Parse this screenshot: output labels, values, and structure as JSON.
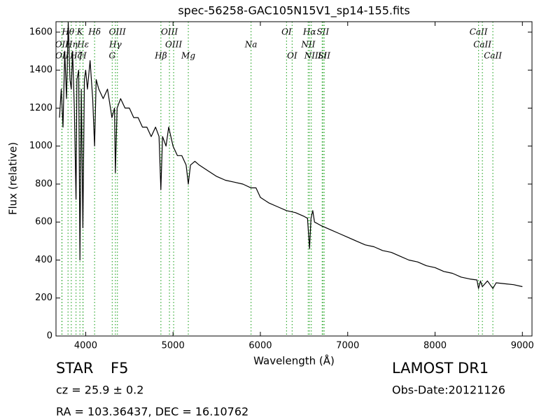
{
  "chart_data": {
    "type": "line",
    "title": "spec-56258-GAC105N15V1_sp14-155.fits",
    "xlabel": "Wavelength (Å)",
    "ylabel": "Flux (relative)",
    "color": "#000000",
    "line_color": "#33aa33",
    "xlim": [
      3660,
      9110
    ],
    "ylim": [
      0,
      1655
    ],
    "xticks": [
      4000,
      5000,
      6000,
      7000,
      8000,
      9000
    ],
    "yticks": [
      0,
      200,
      400,
      600,
      800,
      1000,
      1200,
      1400,
      1600
    ],
    "x": [
      3700,
      3720,
      3740,
      3760,
      3780,
      3800,
      3820,
      3835,
      3850,
      3870,
      3889,
      3900,
      3920,
      3934,
      3950,
      3968,
      3985,
      4000,
      4020,
      4050,
      4080,
      4102,
      4120,
      4150,
      4200,
      4250,
      4300,
      4330,
      4340,
      4360,
      4400,
      4450,
      4500,
      4550,
      4600,
      4650,
      4700,
      4750,
      4800,
      4840,
      4861,
      4880,
      4920,
      4950,
      5000,
      5050,
      5100,
      5150,
      5175,
      5200,
      5250,
      5300,
      5400,
      5500,
      5600,
      5700,
      5800,
      5893,
      5950,
      6000,
      6100,
      6200,
      6300,
      6400,
      6500,
      6540,
      6563,
      6580,
      6600,
      6620,
      6700,
      6800,
      6900,
      7000,
      7100,
      7200,
      7300,
      7400,
      7500,
      7600,
      7700,
      7800,
      7900,
      8000,
      8100,
      8200,
      8300,
      8400,
      8480,
      8498,
      8520,
      8542,
      8600,
      8662,
      8700,
      8800,
      8900,
      9000
    ],
    "values": [
      1150,
      1300,
      1100,
      1500,
      1250,
      1650,
      1350,
      1300,
      1500,
      1200,
      720,
      1350,
      1400,
      400,
      1300,
      570,
      1350,
      1400,
      1300,
      1450,
      1250,
      1000,
      1350,
      1300,
      1250,
      1300,
      1150,
      1200,
      860,
      1200,
      1250,
      1200,
      1200,
      1150,
      1150,
      1100,
      1100,
      1050,
      1100,
      1050,
      770,
      1050,
      1000,
      1100,
      1000,
      950,
      950,
      900,
      800,
      900,
      920,
      900,
      870,
      840,
      820,
      810,
      800,
      780,
      780,
      730,
      700,
      680,
      660,
      650,
      630,
      620,
      460,
      620,
      660,
      600,
      580,
      560,
      540,
      520,
      500,
      480,
      470,
      450,
      440,
      420,
      400,
      390,
      370,
      360,
      340,
      330,
      310,
      300,
      295,
      250,
      290,
      260,
      290,
      250,
      280,
      275,
      270,
      260
    ],
    "spectral_lines": [
      [
        {
          "label": "Hθ",
          "wavelength": 3798
        },
        {
          "label": "K",
          "wavelength": 3934
        },
        {
          "label": "Hδ",
          "wavelength": 4102
        },
        {
          "label": "OIII",
          "wavelength": 4363
        },
        {
          "label": "OIII",
          "wavelength": 4959
        },
        {
          "label": "OI",
          "wavelength": 6300
        },
        {
          "label": "Hα",
          "wavelength": 6563
        },
        {
          "label": "SII",
          "wavelength": 6716
        },
        {
          "label": "CaII",
          "wavelength": 8498
        }
      ],
      [
        {
          "label": "OII",
          "wavelength": 3727
        },
        {
          "label": "Hη",
          "wavelength": 3835
        },
        {
          "label": "Hε",
          "wavelength": 3970
        },
        {
          "label": "Hγ",
          "wavelength": 4340
        },
        {
          "label": "OIII",
          "wavelength": 5007
        },
        {
          "label": "Na",
          "wavelength": 5893
        },
        {
          "label": "NII",
          "wavelength": 6548
        },
        {
          "label": "CaII",
          "wavelength": 8542
        }
      ],
      [
        {
          "label": "OII",
          "wavelength": 3729
        },
        {
          "label": "Hζ",
          "wavelength": 3889
        },
        {
          "label": "H",
          "wavelength": 3968
        },
        {
          "label": "G",
          "wavelength": 4304
        },
        {
          "label": "Hβ",
          "wavelength": 4861
        },
        {
          "label": "Mg",
          "wavelength": 5175
        },
        {
          "label": "OI",
          "wavelength": 6364
        },
        {
          "label": "NII",
          "wavelength": 6583
        },
        {
          "label": "Li",
          "wavelength": 6708
        },
        {
          "label": "SII",
          "wavelength": 6731
        },
        {
          "label": "CaII",
          "wavelength": 8662
        }
      ]
    ]
  },
  "info": {
    "class": "STAR",
    "subclass": "F5",
    "cz": "cz = 25.9 ± 0.2",
    "coords": "RA = 103.36437, DEC = 16.10762",
    "survey": "LAMOST DR1",
    "obs_date": "Obs-Date:20121126"
  }
}
